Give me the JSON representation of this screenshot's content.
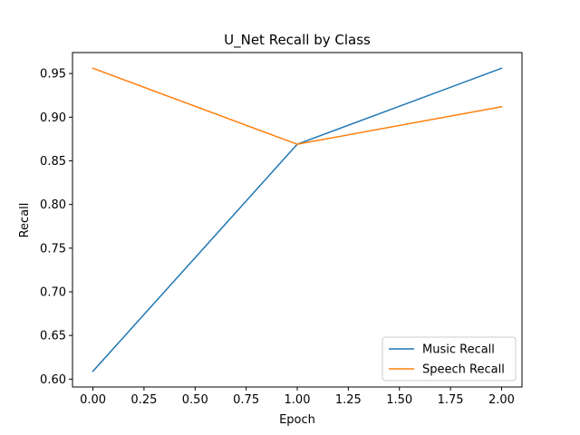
{
  "chart_data": {
    "type": "line",
    "title": "U_Net Recall by Class",
    "xlabel": "Epoch",
    "ylabel": "Recall",
    "x": [
      0.0,
      1.0,
      2.0
    ],
    "xlim": [
      -0.1,
      2.1
    ],
    "ylim": [
      0.591,
      0.974
    ],
    "xticks": [
      "0.00",
      "0.25",
      "0.50",
      "0.75",
      "1.00",
      "1.25",
      "1.50",
      "1.75",
      "2.00"
    ],
    "yticks": [
      "0.60",
      "0.65",
      "0.70",
      "0.75",
      "0.80",
      "0.85",
      "0.90",
      "0.95"
    ],
    "grid": false,
    "legend_position": "lower-right",
    "series": [
      {
        "name": "Music Recall",
        "color": "#1f77b4",
        "values": [
          0.609,
          0.869,
          0.956
        ]
      },
      {
        "name": "Speech Recall",
        "color": "#ff7f0e",
        "values": [
          0.956,
          0.869,
          0.912
        ]
      }
    ]
  }
}
